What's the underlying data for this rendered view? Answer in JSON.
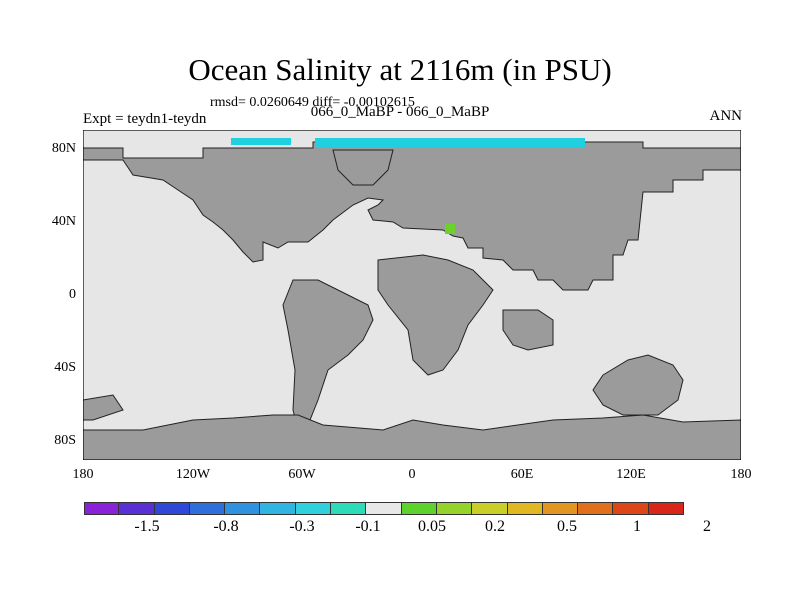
{
  "title": "Ocean Salinity at 2116m (in PSU)",
  "stats": "rmsd= 0.0260649 diff= -0.00102615",
  "experiment": "Expt = teydn1-teydn",
  "case": "066_0_MaBP - 066_0_MaBP",
  "season": "ANN",
  "y_ticks": [
    "80N",
    "40N",
    "0",
    "40S",
    "80S"
  ],
  "x_ticks": [
    "180",
    "120W",
    "60W",
    "0",
    "60E",
    "120E",
    "180"
  ],
  "colorbar": {
    "colors": [
      "#8a22d8",
      "#5a2fd6",
      "#3048d8",
      "#2e6fdc",
      "#2f92e0",
      "#30b5e3",
      "#2fd1dd",
      "#2ddbb8",
      "#e8e8e8",
      "#5ed22c",
      "#95d22a",
      "#c9cf28",
      "#e0b823",
      "#e2961f",
      "#e0701b",
      "#dd4617",
      "#d8261a"
    ],
    "labels": [
      "-1.5",
      "-0.8",
      "-0.3",
      "-0.1",
      "0.05",
      "0.2",
      "0.5",
      "1",
      "2"
    ]
  },
  "map_colors": {
    "ocean": "#e6e6e6",
    "land": "#9b9b9b",
    "cyan_anomaly": "#20d0e0",
    "green_anomaly": "#6cd12a"
  }
}
